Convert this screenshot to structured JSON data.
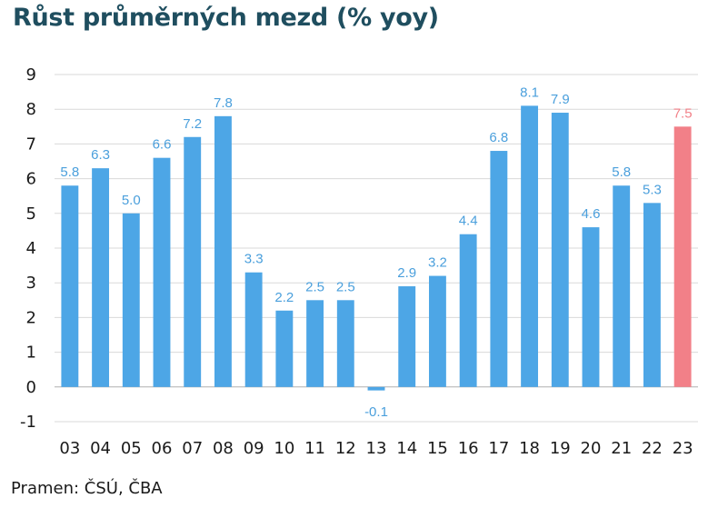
{
  "title": "Růst průměrných mezd (% yoy)",
  "source": "Pramen: ČSÚ, ČBA",
  "colors": {
    "bar": "#4da6e6",
    "highlight": "#f28088",
    "label": "#4a9fdc",
    "highlight_label": "#f28088",
    "grid": "#d9d9d9",
    "title": "#1f4e5f"
  },
  "chart_data": {
    "type": "bar",
    "categories": [
      "03",
      "04",
      "05",
      "06",
      "07",
      "08",
      "09",
      "10",
      "11",
      "12",
      "13",
      "14",
      "15",
      "16",
      "17",
      "18",
      "19",
      "20",
      "21",
      "22",
      "23"
    ],
    "values": [
      5.8,
      6.3,
      5.0,
      6.6,
      7.2,
      7.8,
      3.3,
      2.2,
      2.5,
      2.5,
      -0.1,
      2.9,
      3.2,
      4.4,
      6.8,
      8.1,
      7.9,
      4.6,
      5.8,
      5.3,
      7.5
    ],
    "labels": [
      "5.8",
      "6.3",
      "5.0",
      "6.6",
      "7.2",
      "7.8",
      "3.3",
      "2.2",
      "2.5",
      "2.5",
      "-0.1",
      "2.9",
      "3.2",
      "4.4",
      "6.8",
      "8.1",
      "7.9",
      "4.6",
      "5.8",
      "5.3",
      "7.5"
    ],
    "highlight_category": "23",
    "yticks": [
      "9",
      "8",
      "7",
      "6",
      "5",
      "4",
      "3",
      "2",
      "1",
      "0",
      "-1"
    ],
    "ylim": [
      -1,
      9
    ],
    "grid": true,
    "title": "Růst průměrných mezd (% yoy)"
  }
}
